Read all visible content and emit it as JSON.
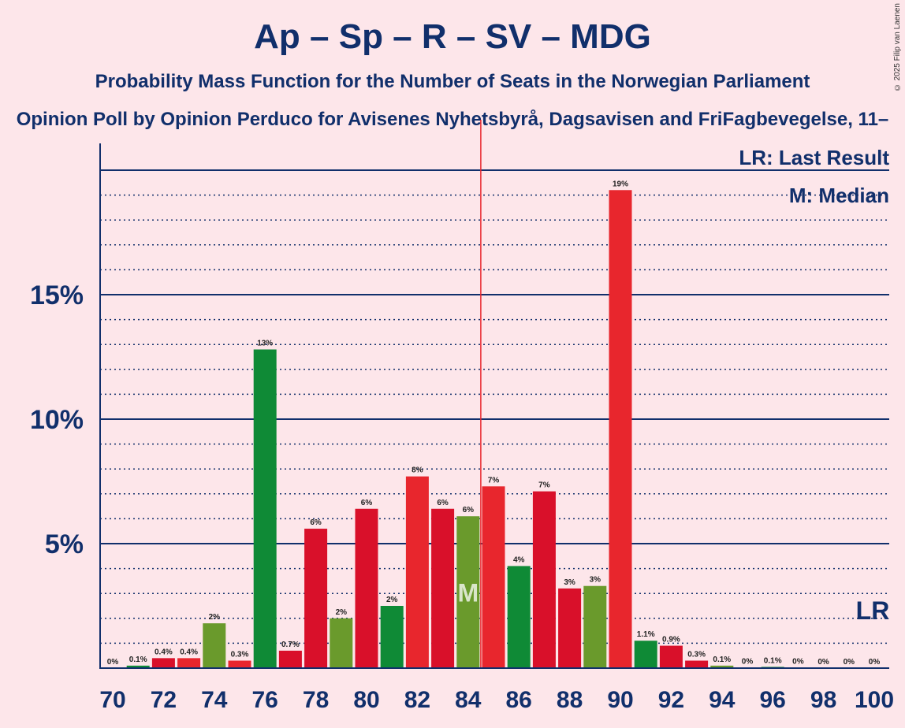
{
  "title": "Ap – Sp – R – SV – MDG",
  "subtitle": "Probability Mass Function for the Number of Seats in the Norwegian Parliament",
  "source": "Opinion Poll by Opinion Perduco for Avisenes Nyhetsbyrå, Dagsavisen and FriFagbevegelse, 11–",
  "copyright": "© 2025 Filip van Laenen",
  "legend": {
    "last_result": "LR: Last Result",
    "median": "M: Median"
  },
  "colors": {
    "background": "#fde6ea",
    "axis": "#112f6b",
    "majority_line": "#e8262d",
    "bar_colors": [
      "#e8262d",
      "#d9102a",
      "#0f8a36",
      "#6a9a2c"
    ]
  },
  "chart_data": {
    "type": "bar",
    "x": [
      70,
      71,
      72,
      73,
      74,
      75,
      76,
      77,
      78,
      79,
      80,
      81,
      82,
      83,
      84,
      85,
      86,
      87,
      88,
      89,
      90,
      91,
      92,
      93,
      94,
      95,
      96,
      97,
      98,
      99,
      100
    ],
    "values": [
      0.0,
      0.1,
      0.4,
      0.4,
      1.8,
      0.3,
      12.8,
      0.7,
      5.6,
      2.0,
      6.4,
      2.5,
      7.7,
      6.4,
      6.1,
      7.3,
      4.1,
      7.1,
      3.2,
      3.3,
      19.2,
      1.1,
      0.9,
      0.3,
      0.1,
      0.02,
      0.05,
      0.01,
      0.0,
      0.0,
      0.0
    ],
    "data_labels": [
      "0%",
      "0.1%",
      "0.4%",
      "0.4%",
      "2%",
      "0.3%",
      "13%",
      "0.7%",
      "6%",
      "2%",
      "6%",
      "2%",
      "8%",
      "6%",
      "6%",
      "7%",
      "4%",
      "7%",
      "3%",
      "3%",
      "19%",
      "1.1%",
      "0.9%",
      "0.3%",
      "0.1%",
      "0%",
      "0.1%",
      "0%",
      "0%",
      "0%",
      "0%"
    ],
    "bar_color_index": [
      1,
      2,
      1,
      0,
      3,
      0,
      2,
      1,
      1,
      3,
      1,
      2,
      0,
      1,
      3,
      0,
      2,
      1,
      1,
      3,
      0,
      2,
      1,
      1,
      3,
      0,
      2,
      1,
      1,
      3,
      0
    ],
    "x_tick_labels": [
      "70",
      "72",
      "74",
      "76",
      "78",
      "80",
      "82",
      "84",
      "86",
      "88",
      "90",
      "92",
      "94",
      "96",
      "98",
      "100"
    ],
    "y_tick_labels": [
      "5%",
      "10%",
      "15%"
    ],
    "ylim": [
      0,
      20
    ],
    "median_seat": 84,
    "median_label": "M",
    "majority_line_x": 84.5,
    "last_result_seat": 100,
    "last_result_label": "LR",
    "grid": true
  }
}
